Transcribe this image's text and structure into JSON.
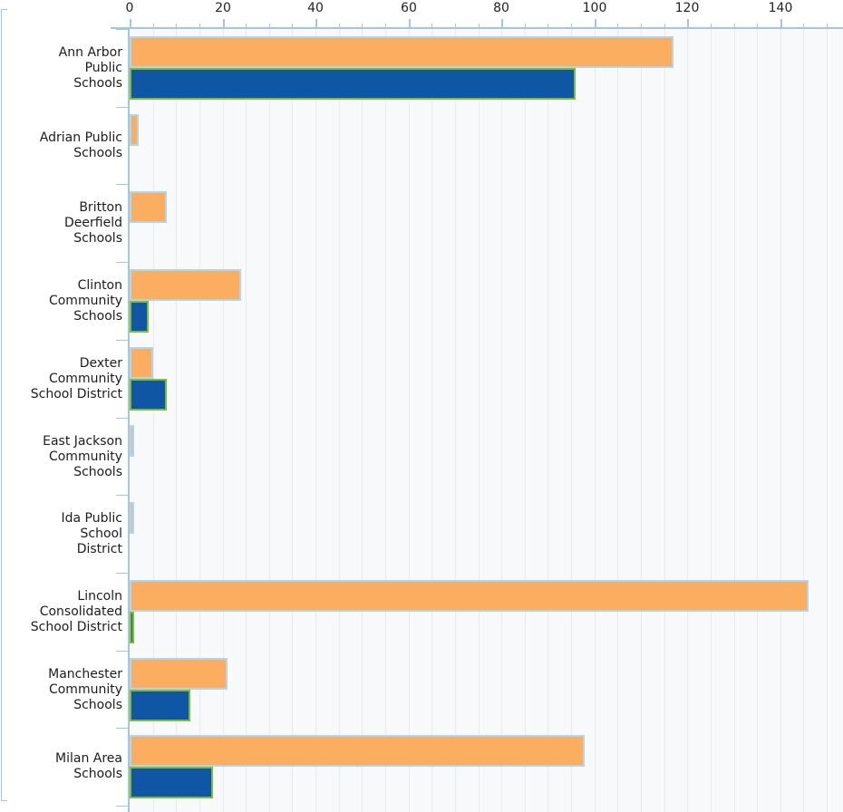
{
  "chart_data": {
    "type": "bar",
    "orientation": "horizontal",
    "title": "",
    "legend_position": "none",
    "categories": [
      "Ann Arbor Public Schools",
      "Adrian Public Schools",
      "Britton Deerfield Schools",
      "Clinton Community Schools",
      "Dexter Community School District",
      "East Jackson Community Schools",
      "Ida Public School District",
      "Lincoln Consolidated School District",
      "Manchester Community Schools",
      "Milan Area Schools"
    ],
    "category_label_lines": [
      [
        "Ann Arbor",
        "Public",
        "Schools"
      ],
      [
        "Adrian Public",
        "Schools"
      ],
      [
        "Britton",
        "Deerfield",
        "Schools"
      ],
      [
        "Clinton",
        "Community",
        "Schools"
      ],
      [
        "Dexter",
        "Community",
        "School District"
      ],
      [
        "East Jackson",
        "Community",
        "Schools"
      ],
      [
        "Ida Public",
        "School",
        "District"
      ],
      [
        "Lincoln",
        "Consolidated",
        "School District"
      ],
      [
        "Manchester",
        "Community",
        "Schools"
      ],
      [
        "Milan Area",
        "Schools"
      ]
    ],
    "series": [
      {
        "name": "orange",
        "fill_color": "#FBAD60",
        "border_color": "#AFD5EF",
        "values": [
          117,
          2,
          8,
          24,
          5,
          1,
          1,
          146,
          21,
          98
        ]
      },
      {
        "name": "blue",
        "fill_color": "#0F57A5",
        "border_color": "#7FBC34",
        "values": [
          96,
          0,
          0,
          4,
          8,
          0,
          0,
          1,
          13,
          18
        ]
      }
    ],
    "x_axis": {
      "position": "top",
      "min": 0,
      "max": 153,
      "major_tick_values": [
        0,
        20,
        40,
        60,
        80,
        100,
        120,
        140
      ],
      "major_tick_labels": [
        "0",
        "20",
        "40",
        "60",
        "80",
        "100",
        "120",
        "140"
      ],
      "minor_tick_step": 5
    },
    "grid": {
      "vertical": true,
      "step": 5
    }
  },
  "colors": {
    "plot_background": "#F7F9FB",
    "gridline": "#E2EAF2",
    "axis": "#A3C7E1",
    "text": "#1c1c1c",
    "orange_fill": "#FBAD60",
    "orange_border": "#AFD5EF",
    "blue_fill": "#0F57A5",
    "blue_border": "#7FBC34"
  }
}
